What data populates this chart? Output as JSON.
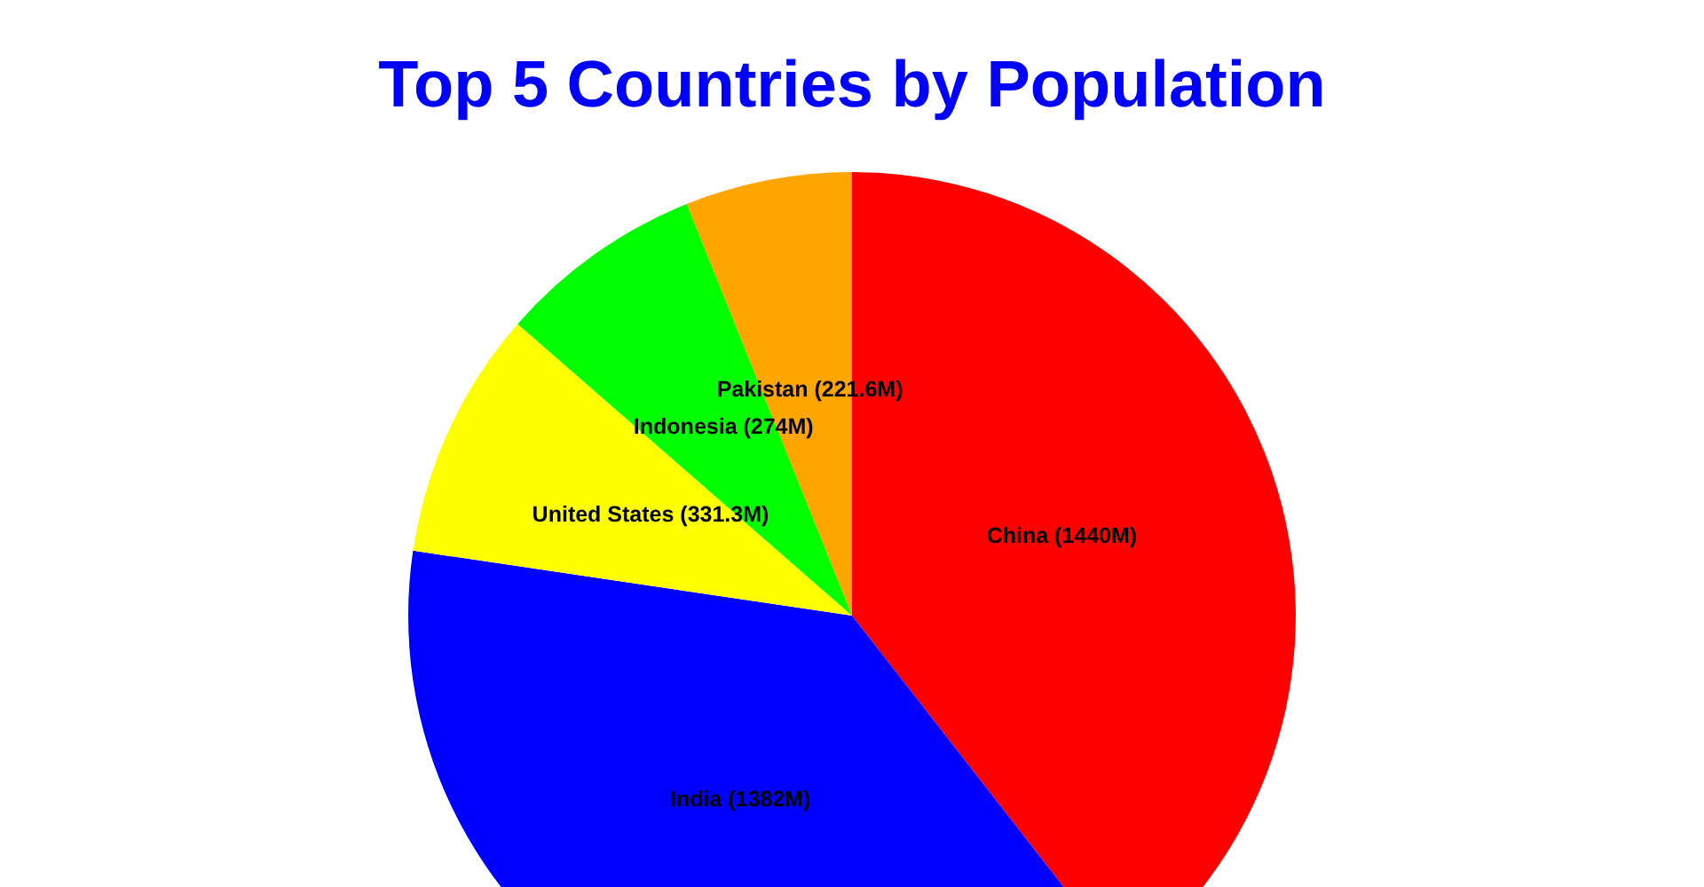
{
  "chart_data": {
    "type": "pie",
    "title": "Top 5 Countries by Population",
    "categories": [
      "China",
      "India",
      "United States",
      "Indonesia",
      "Pakistan"
    ],
    "values": [
      1440,
      1382,
      331.3,
      274,
      221.6
    ],
    "colors": [
      "#ff0000",
      "#0000ff",
      "#ffff00",
      "#00ff00",
      "#ffa500"
    ],
    "value_labels": [
      "(1440M)",
      "(1382M)",
      "(331.3M)",
      "(274M)",
      "(221.6M)"
    ],
    "legend": false
  }
}
